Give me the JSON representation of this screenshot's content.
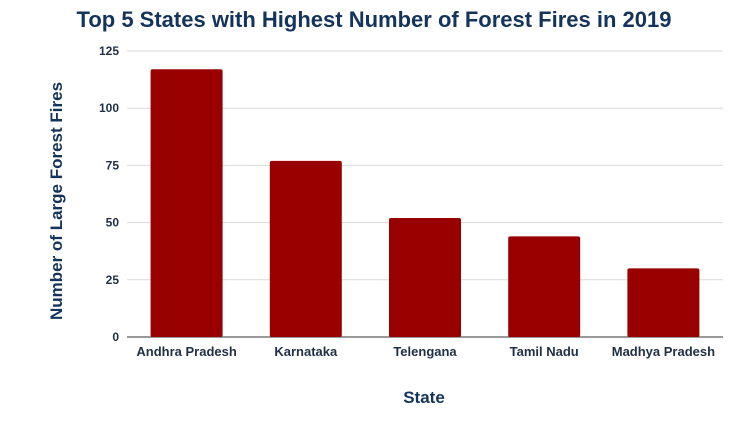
{
  "chart_data": {
    "type": "bar",
    "title": "Top 5 States with Highest Number of Forest Fires in 2019",
    "xlabel": "State",
    "ylabel": "Number of Large Forest Fires",
    "categories": [
      "Andhra Pradesh",
      "Karnataka",
      "Telengana",
      "Tamil Nadu",
      "Madhya Pradesh"
    ],
    "values": [
      117,
      77,
      52,
      44,
      30
    ],
    "ylim": [
      0,
      125
    ],
    "yticks": [
      0,
      25,
      50,
      75,
      100,
      125
    ],
    "grid": true,
    "legend": "none",
    "bar_color": "#990000"
  }
}
